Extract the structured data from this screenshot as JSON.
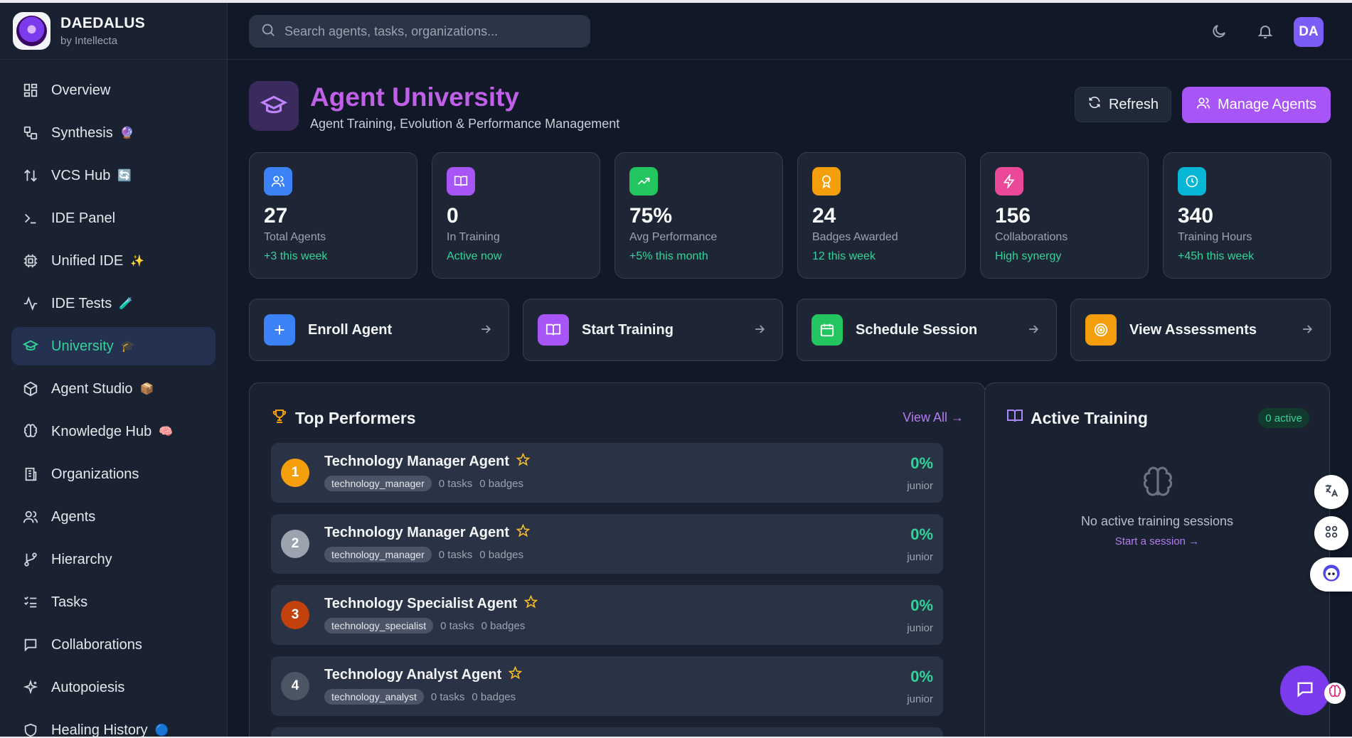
{
  "brand": {
    "name": "DAEDALUS",
    "sub": "by Intellecta"
  },
  "search": {
    "placeholder": "Search agents, tasks, organizations..."
  },
  "user": {
    "initials": "DA"
  },
  "nav": [
    {
      "label": "Overview",
      "emoji": ""
    },
    {
      "label": "Synthesis",
      "emoji": "🔮"
    },
    {
      "label": "VCS Hub",
      "emoji": "🔄"
    },
    {
      "label": "IDE Panel",
      "emoji": ""
    },
    {
      "label": "Unified IDE",
      "emoji": "✨"
    },
    {
      "label": "IDE Tests",
      "emoji": "🧪"
    },
    {
      "label": "University",
      "emoji": "🎓"
    },
    {
      "label": "Agent Studio",
      "emoji": "📦"
    },
    {
      "label": "Knowledge Hub",
      "emoji": "🧠"
    },
    {
      "label": "Organizations",
      "emoji": ""
    },
    {
      "label": "Agents",
      "emoji": ""
    },
    {
      "label": "Hierarchy",
      "emoji": ""
    },
    {
      "label": "Tasks",
      "emoji": ""
    },
    {
      "label": "Collaborations",
      "emoji": ""
    },
    {
      "label": "Autopoiesis",
      "emoji": ""
    },
    {
      "label": "Healing History",
      "emoji": "🔵"
    }
  ],
  "page": {
    "title": "Agent University",
    "subtitle": "Agent Training, Evolution & Performance Management",
    "refresh_label": "Refresh",
    "manage_label": "Manage Agents"
  },
  "stats": [
    {
      "value": "27",
      "label": "Total Agents",
      "delta": "+3 this week",
      "color": "#3b82f6",
      "icon": "users-icon"
    },
    {
      "value": "0",
      "label": "In Training",
      "delta": "Active now",
      "color": "#a855f7",
      "icon": "book-icon"
    },
    {
      "value": "75%",
      "label": "Avg Performance",
      "delta": "+5% this month",
      "color": "#22c55e",
      "icon": "trending-up-icon"
    },
    {
      "value": "24",
      "label": "Badges Awarded",
      "delta": "12 this week",
      "color": "#f59e0b",
      "icon": "award-icon"
    },
    {
      "value": "156",
      "label": "Collaborations",
      "delta": "High synergy",
      "color": "#ec4899",
      "icon": "zap-icon"
    },
    {
      "value": "340",
      "label": "Training Hours",
      "delta": "+45h this week",
      "color": "#06b6d4",
      "icon": "clock-icon"
    }
  ],
  "actions": [
    {
      "label": "Enroll Agent",
      "color": "#3b82f6",
      "icon": "plus-icon"
    },
    {
      "label": "Start Training",
      "color": "#a855f7",
      "icon": "book-open-icon"
    },
    {
      "label": "Schedule Session",
      "color": "#22c55e",
      "icon": "calendar-icon"
    },
    {
      "label": "View Assessments",
      "color": "#f59e0b",
      "icon": "target-icon"
    }
  ],
  "top_performers": {
    "title": "Top Performers",
    "view_all": "View All →",
    "rows": [
      {
        "rank": "1",
        "name": "Technology Manager Agent",
        "role": "technology_manager",
        "tasks": "0 tasks",
        "badges": "0 badges",
        "pct": "0%",
        "level": "junior",
        "rank_color": "#f59e0b"
      },
      {
        "rank": "2",
        "name": "Technology Manager Agent",
        "role": "technology_manager",
        "tasks": "0 tasks",
        "badges": "0 badges",
        "pct": "0%",
        "level": "junior",
        "rank_color": "#9ca3af"
      },
      {
        "rank": "3",
        "name": "Technology Specialist Agent",
        "role": "technology_specialist",
        "tasks": "0 tasks",
        "badges": "0 badges",
        "pct": "0%",
        "level": "junior",
        "rank_color": "#c2410c"
      },
      {
        "rank": "4",
        "name": "Technology Analyst Agent",
        "role": "technology_analyst",
        "tasks": "0 tasks",
        "badges": "0 badges",
        "pct": "0%",
        "level": "junior",
        "rank_color": "#4b5563"
      }
    ]
  },
  "active_training": {
    "title": "Active Training",
    "badge": "0 active",
    "empty_text": "No active training sessions",
    "empty_link": "Start a session →"
  }
}
